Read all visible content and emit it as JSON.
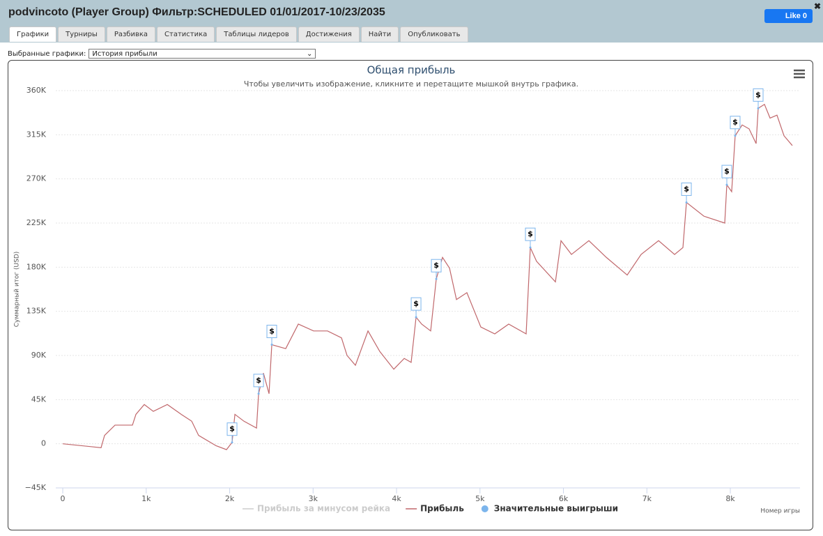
{
  "header": {
    "title": "podvincoto (Player Group) Фильтр:SCHEDULED 01/01/2017-10/23/2035",
    "like_button": "Like 0"
  },
  "tabs": [
    "Графики",
    "Турниры",
    "Разбивка",
    "Статистика",
    "Таблицы лидеров",
    "Достижения",
    "Найти",
    "Опубликовать"
  ],
  "selector": {
    "label": "Выбранные графики:",
    "value": "История прибыли"
  },
  "chart_data": {
    "type": "line",
    "title": "Общая прибыль",
    "subtitle": "Чтобы увеличить изображение, кликните и перетащите мышкой внутрь графика.",
    "x_label": "Номер игры",
    "y_label": "Суммарный итог (USD)",
    "xlim": [
      -84,
      8835
    ],
    "ylim": [
      -45000,
      360000
    ],
    "xticks": [
      0,
      {
        "value": 1000,
        "label": "1k"
      },
      {
        "value": 2000,
        "label": "2k"
      },
      {
        "value": 3000,
        "label": "3k"
      },
      {
        "value": 4000,
        "label": "4k"
      },
      {
        "value": 5000,
        "label": "5k"
      },
      {
        "value": 6000,
        "label": "6k"
      },
      {
        "value": 7000,
        "label": "7k"
      },
      {
        "value": 8000,
        "label": "8k"
      }
    ],
    "yticks": [
      {
        "value": -45000,
        "label": "−45K"
      },
      0,
      {
        "value": 45000,
        "label": "45K"
      },
      {
        "value": 90000,
        "label": "90K"
      },
      {
        "value": 135000,
        "label": "135K"
      },
      {
        "value": 180000,
        "label": "180K"
      },
      {
        "value": 225000,
        "label": "225K"
      },
      {
        "value": 270000,
        "label": "270K"
      },
      {
        "value": 315000,
        "label": "315K"
      },
      {
        "value": 360000,
        "label": "360K"
      }
    ],
    "grid": true,
    "series": [
      {
        "name": "Прибыль за минусом рейка",
        "color": "#cccccc",
        "visible": false
      },
      {
        "name": "Прибыль",
        "color": "#c0676b",
        "x": [
          0,
          459,
          501,
          626,
          835,
          877,
          977,
          1085,
          1253,
          1420,
          1545,
          1628,
          1837,
          1962,
          2029,
          2063,
          2171,
          2322,
          2347,
          2405,
          2472,
          2505,
          2672,
          2823,
          3006,
          3173,
          3340,
          3407,
          3507,
          3658,
          3800,
          3967,
          4092,
          4175,
          4234,
          4301,
          4409,
          4476,
          4551,
          4635,
          4718,
          4843,
          5010,
          5177,
          5344,
          5553,
          5603,
          5678,
          5904,
          5971,
          6096,
          6305,
          6514,
          6764,
          6931,
          7140,
          7332,
          7432,
          7474,
          7683,
          7933,
          7958,
          8016,
          8058,
          8142,
          8225,
          8309,
          8334,
          8409,
          8476,
          8559,
          8643,
          8743
        ],
        "values": [
          0,
          -4000,
          8500,
          19000,
          19000,
          30000,
          40000,
          33000,
          40000,
          30000,
          23000,
          8500,
          -2000,
          -6000,
          1400,
          30000,
          23000,
          16000,
          51000,
          72000,
          51000,
          101000,
          97000,
          122000,
          115000,
          115000,
          108000,
          90000,
          80000,
          115000,
          94000,
          76000,
          87000,
          83000,
          129000,
          122000,
          115000,
          168000,
          190000,
          179000,
          147000,
          154000,
          119000,
          112000,
          122000,
          112000,
          200000,
          186000,
          165000,
          207000,
          193000,
          207000,
          190000,
          172000,
          193000,
          207000,
          193000,
          200000,
          246000,
          232000,
          225000,
          264000,
          257000,
          314000,
          325000,
          321000,
          306000,
          342000,
          346000,
          332000,
          335000,
          314000,
          304000
        ]
      },
      {
        "name": "Значительные выигрыши",
        "color": "#7cb5ec",
        "marker_label": "$",
        "x": [
          2029,
          2347,
          2505,
          4234,
          4476,
          5603,
          7474,
          7958,
          8058,
          8334
        ],
        "values": [
          1400,
          51000,
          101000,
          129000,
          168000,
          200000,
          246000,
          264000,
          314000,
          342000
        ]
      }
    ]
  }
}
